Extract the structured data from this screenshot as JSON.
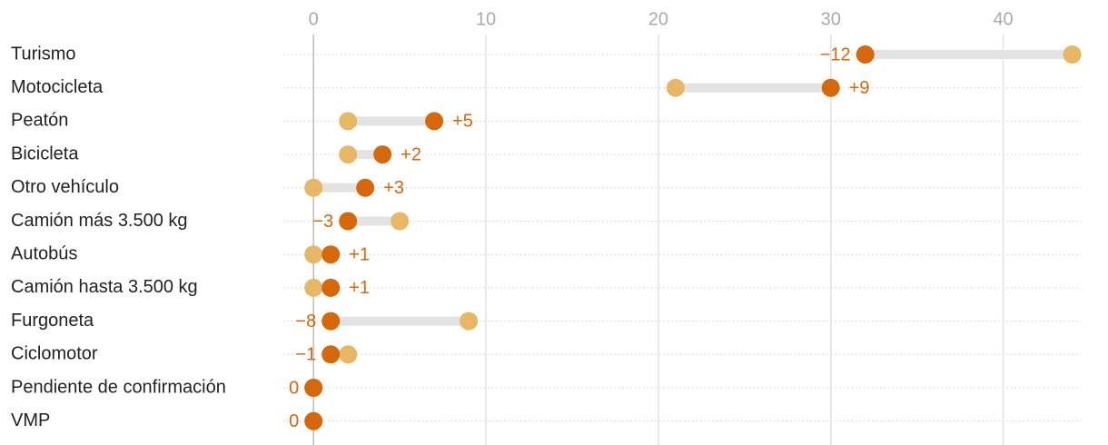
{
  "chart_data": {
    "type": "dumbbell",
    "categories": [
      "Turismo",
      "Motocicleta",
      "Peatón",
      "Bicicleta",
      "Otro vehículo",
      "Camión más 3.500 kg",
      "Autobús",
      "Camión hasta 3.500 kg",
      "Furgoneta",
      "Ciclomotor",
      "Pendiente de confirmación",
      "VMP"
    ],
    "series": [
      {
        "color": "#e8b766",
        "values": [
          44,
          21,
          2,
          2,
          0,
          5,
          0,
          0,
          9,
          2,
          0,
          0
        ]
      },
      {
        "color": "#d4680a",
        "values": [
          32,
          30,
          7,
          4,
          3,
          2,
          1,
          1,
          1,
          1,
          0,
          0
        ]
      }
    ],
    "changes": {
      "values": [
        -12,
        9,
        5,
        2,
        3,
        -3,
        1,
        1,
        -8,
        -1,
        0,
        0
      ],
      "value_labels": [
        "−12",
        "+9",
        "+5",
        "+2",
        "+3",
        "−3",
        "+1",
        "+1",
        "−8",
        "−1",
        "0",
        "0"
      ]
    },
    "xlim": [
      -1.75,
      44.5
    ],
    "xticks": [
      0,
      10,
      20,
      30,
      40
    ],
    "grid": true
  }
}
